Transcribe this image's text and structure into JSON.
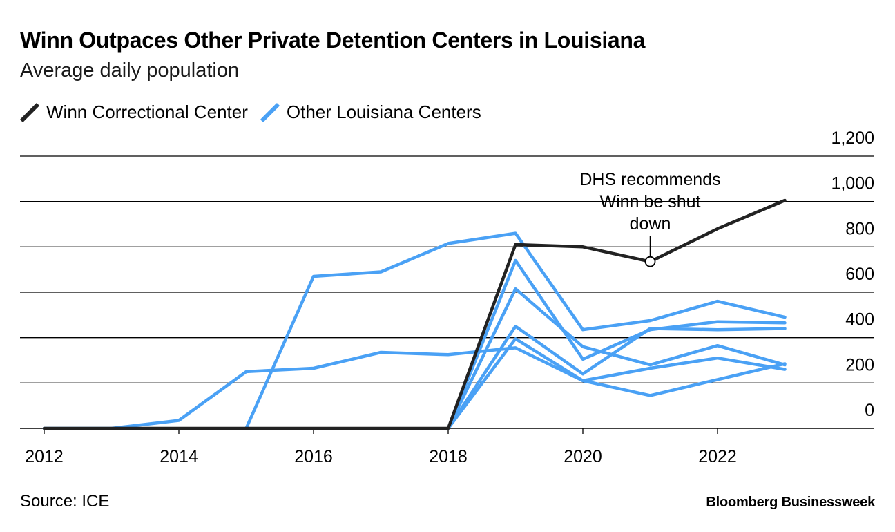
{
  "title": "Winn Outpaces Other Private Detention Centers in Louisiana",
  "subtitle": "Average daily population",
  "legend": [
    {
      "label": "Winn Correctional Center",
      "color": "#222222"
    },
    {
      "label": "Other Louisiana Centers",
      "color": "#4aa1f5"
    }
  ],
  "source": "Source: ICE",
  "brand": "Bloomberg Businessweek",
  "chart_data": {
    "type": "line",
    "title": "Winn Outpaces Other Private Detention Centers in Louisiana",
    "subtitle": "Average daily population",
    "x_ticks": [
      "2012",
      "2014",
      "2016",
      "2018",
      "2020",
      "2022"
    ],
    "y_ticks": [
      "0",
      "200",
      "400",
      "600",
      "800",
      "1,000",
      "1,200"
    ],
    "xlim": [
      2012,
      2024.3
    ],
    "ylim": [
      0,
      1200
    ],
    "grid": true,
    "y_axis_side": "right",
    "legend_position": "top-left",
    "series": [
      {
        "name": "Other Louisiana Centers",
        "color": "#4aa1f5",
        "points": [
          [
            2012,
            0
          ],
          [
            2013,
            0
          ],
          [
            2014,
            35
          ],
          [
            2015,
            250
          ],
          [
            2016,
            265
          ],
          [
            2017,
            335
          ],
          [
            2018,
            325
          ],
          [
            2019,
            355
          ],
          [
            2020,
            210
          ],
          [
            2021,
            265
          ],
          [
            2022,
            310
          ],
          [
            2023,
            260
          ]
        ]
      },
      {
        "name": "Other Louisiana Centers",
        "color": "#4aa1f5",
        "points": [
          [
            2015,
            0
          ],
          [
            2016,
            670
          ],
          [
            2017,
            690
          ],
          [
            2018,
            815
          ],
          [
            2019,
            860
          ],
          [
            2020,
            435
          ],
          [
            2021,
            475
          ],
          [
            2022,
            560
          ],
          [
            2023,
            490
          ]
        ]
      },
      {
        "name": "Other Louisiana Centers",
        "color": "#4aa1f5",
        "points": [
          [
            2018,
            0
          ],
          [
            2019,
            740
          ],
          [
            2020,
            305
          ],
          [
            2021,
            435
          ],
          [
            2022,
            470
          ],
          [
            2023,
            465
          ]
        ]
      },
      {
        "name": "Other Louisiana Centers",
        "color": "#4aa1f5",
        "points": [
          [
            2018,
            0
          ],
          [
            2019,
            615
          ],
          [
            2020,
            360
          ],
          [
            2021,
            280
          ],
          [
            2022,
            365
          ],
          [
            2023,
            280
          ]
        ]
      },
      {
        "name": "Other Louisiana Centers",
        "color": "#4aa1f5",
        "points": [
          [
            2018,
            0
          ],
          [
            2019,
            450
          ],
          [
            2020,
            240
          ],
          [
            2021,
            440
          ],
          [
            2022,
            435
          ],
          [
            2023,
            440
          ]
        ]
      },
      {
        "name": "Other Louisiana Centers",
        "color": "#4aa1f5",
        "points": [
          [
            2018,
            0
          ],
          [
            2019,
            395
          ],
          [
            2020,
            210
          ],
          [
            2021,
            145
          ],
          [
            2022,
            215
          ],
          [
            2023,
            285
          ]
        ]
      },
      {
        "name": "Winn Correctional Center",
        "color": "#222222",
        "points": [
          [
            2012,
            0
          ],
          [
            2013,
            0
          ],
          [
            2014,
            0
          ],
          [
            2015,
            0
          ],
          [
            2016,
            0
          ],
          [
            2017,
            0
          ],
          [
            2018,
            0
          ],
          [
            2019,
            810
          ],
          [
            2020,
            800
          ],
          [
            2021,
            735
          ],
          [
            2022,
            880
          ],
          [
            2023,
            1005
          ]
        ]
      }
    ],
    "annotations": [
      {
        "lines": [
          "DHS recommends",
          "Winn be shut",
          "down"
        ],
        "x": 2021,
        "y": 735,
        "series": "Winn Correctional Center"
      }
    ]
  }
}
